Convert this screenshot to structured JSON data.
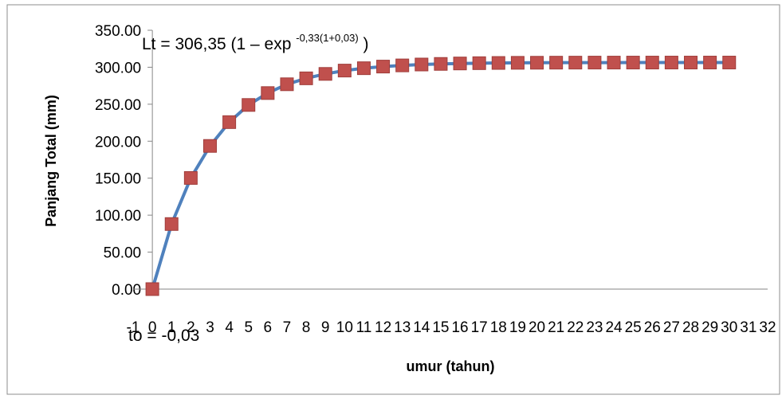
{
  "chart_data": {
    "type": "line",
    "title": "",
    "xlabel": "umur (tahun)",
    "ylabel": "Panjang Total (mm)",
    "xlim": [
      -1,
      32
    ],
    "ylim": [
      0,
      350
    ],
    "y_ticks": [
      "0.00",
      "50.00",
      "100.00",
      "150.00",
      "200.00",
      "250.00",
      "300.00",
      "350.00"
    ],
    "x_ticks": [
      "-1",
      "0",
      "1",
      "2",
      "3",
      "4",
      "5",
      "6",
      "7",
      "8",
      "9",
      "10",
      "11",
      "12",
      "13",
      "14",
      "15",
      "16",
      "17",
      "18",
      "19",
      "20",
      "21",
      "22",
      "23",
      "24",
      "25",
      "26",
      "27",
      "28",
      "29",
      "30",
      "31",
      "32"
    ],
    "grid": false,
    "legend": "none",
    "colors": {
      "line": "#4F81BD",
      "marker": "#C0504D",
      "marker_edge": "#A03E3B"
    },
    "annotations": {
      "equation_main": "Lt = 306,35 (1 – exp",
      "equation_sup": "-0,33(1+0,03)",
      "equation_close": ")",
      "t0": "to = -0,03"
    },
    "series": [
      {
        "x": [
          0,
          1,
          2,
          3,
          4,
          5,
          6,
          7,
          8,
          9,
          10,
          11,
          12,
          13,
          14,
          15,
          16,
          17,
          18,
          19,
          20,
          21,
          22,
          23,
          24,
          25,
          26,
          27,
          28,
          29,
          30
        ],
        "y": [
          0.0,
          88.0,
          150.3,
          193.6,
          225.8,
          249.0,
          265.1,
          277.0,
          285.0,
          291.0,
          295.5,
          298.7,
          300.9,
          302.5,
          303.7,
          304.5,
          305.1,
          305.5,
          305.8,
          306.0,
          306.1,
          306.2,
          306.25,
          306.3,
          306.3,
          306.32,
          306.33,
          306.34,
          306.34,
          306.35,
          306.35
        ]
      }
    ]
  }
}
